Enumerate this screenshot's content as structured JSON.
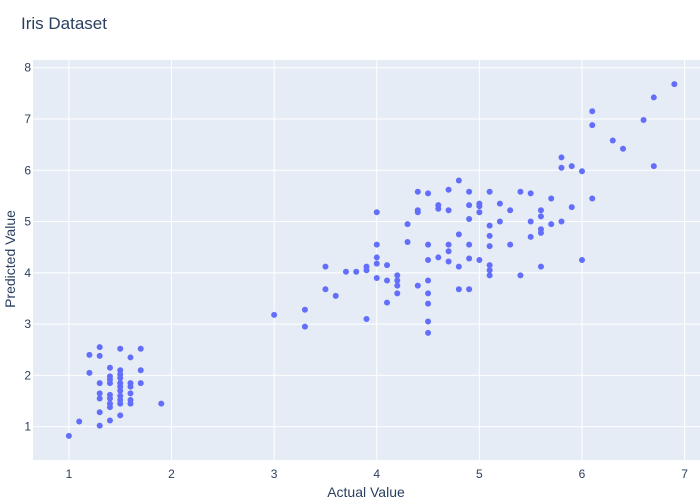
{
  "chart_data": {
    "type": "scatter",
    "title": "Iris Dataset",
    "xlabel": "Actual Value",
    "ylabel": "Predicted Value",
    "xlim": [
      0.65,
      7.15
    ],
    "ylim": [
      0.35,
      8.15
    ],
    "xticks": [
      1,
      2,
      3,
      4,
      5,
      6,
      7
    ],
    "yticks": [
      1,
      2,
      3,
      4,
      5,
      6,
      7,
      8
    ],
    "grid": true,
    "colors": {
      "plot_bg": "#e5ecf6",
      "grid": "#ffffff",
      "marker": "#636efa",
      "text": "#2a3f5f"
    },
    "series": [
      {
        "points": [
          [
            1.0,
            0.82
          ],
          [
            1.1,
            1.1
          ],
          [
            1.2,
            2.05
          ],
          [
            1.2,
            2.4
          ],
          [
            1.3,
            2.55
          ],
          [
            1.3,
            2.38
          ],
          [
            1.3,
            1.85
          ],
          [
            1.3,
            1.65
          ],
          [
            1.3,
            1.55
          ],
          [
            1.3,
            1.28
          ],
          [
            1.3,
            1.02
          ],
          [
            1.4,
            2.15
          ],
          [
            1.4,
            1.98
          ],
          [
            1.4,
            1.92
          ],
          [
            1.4,
            1.85
          ],
          [
            1.4,
            1.62
          ],
          [
            1.4,
            1.55
          ],
          [
            1.4,
            1.45
          ],
          [
            1.4,
            1.38
          ],
          [
            1.4,
            1.12
          ],
          [
            1.5,
            2.52
          ],
          [
            1.5,
            2.1
          ],
          [
            1.5,
            2.02
          ],
          [
            1.5,
            1.95
          ],
          [
            1.5,
            1.85
          ],
          [
            1.5,
            1.78
          ],
          [
            1.5,
            1.7
          ],
          [
            1.5,
            1.6
          ],
          [
            1.5,
            1.52
          ],
          [
            1.5,
            1.45
          ],
          [
            1.5,
            1.22
          ],
          [
            1.6,
            2.35
          ],
          [
            1.6,
            1.85
          ],
          [
            1.6,
            1.78
          ],
          [
            1.6,
            1.65
          ],
          [
            1.6,
            1.52
          ],
          [
            1.6,
            1.45
          ],
          [
            1.7,
            2.52
          ],
          [
            1.7,
            2.1
          ],
          [
            1.7,
            1.85
          ],
          [
            1.9,
            1.45
          ],
          [
            3.0,
            3.18
          ],
          [
            3.3,
            3.28
          ],
          [
            3.3,
            2.95
          ],
          [
            3.5,
            4.12
          ],
          [
            3.5,
            3.68
          ],
          [
            3.6,
            3.55
          ],
          [
            3.7,
            4.02
          ],
          [
            3.8,
            4.02
          ],
          [
            3.9,
            4.12
          ],
          [
            3.9,
            4.05
          ],
          [
            3.9,
            3.1
          ],
          [
            4.0,
            5.18
          ],
          [
            4.0,
            4.55
          ],
          [
            4.0,
            4.3
          ],
          [
            4.0,
            4.18
          ],
          [
            4.0,
            3.9
          ],
          [
            4.1,
            4.15
          ],
          [
            4.1,
            3.85
          ],
          [
            4.1,
            3.42
          ],
          [
            4.2,
            3.95
          ],
          [
            4.2,
            3.85
          ],
          [
            4.2,
            3.75
          ],
          [
            4.2,
            3.6
          ],
          [
            4.3,
            4.95
          ],
          [
            4.3,
            4.6
          ],
          [
            4.4,
            5.58
          ],
          [
            4.4,
            5.22
          ],
          [
            4.4,
            5.18
          ],
          [
            4.4,
            3.75
          ],
          [
            4.5,
            5.55
          ],
          [
            4.5,
            4.55
          ],
          [
            4.5,
            4.25
          ],
          [
            4.5,
            3.85
          ],
          [
            4.5,
            3.6
          ],
          [
            4.5,
            3.4
          ],
          [
            4.5,
            3.05
          ],
          [
            4.5,
            2.83
          ],
          [
            4.6,
            5.32
          ],
          [
            4.6,
            5.25
          ],
          [
            4.6,
            4.3
          ],
          [
            4.7,
            5.62
          ],
          [
            4.7,
            5.22
          ],
          [
            4.7,
            4.55
          ],
          [
            4.7,
            4.42
          ],
          [
            4.7,
            4.22
          ],
          [
            4.8,
            5.8
          ],
          [
            4.8,
            4.75
          ],
          [
            4.8,
            4.12
          ],
          [
            4.8,
            3.68
          ],
          [
            4.9,
            5.58
          ],
          [
            4.9,
            5.32
          ],
          [
            4.9,
            5.05
          ],
          [
            4.9,
            4.55
          ],
          [
            4.9,
            4.28
          ],
          [
            4.9,
            3.68
          ],
          [
            5.0,
            5.35
          ],
          [
            5.0,
            5.3
          ],
          [
            5.0,
            5.18
          ],
          [
            5.0,
            4.25
          ],
          [
            5.1,
            5.58
          ],
          [
            5.1,
            4.92
          ],
          [
            5.1,
            4.72
          ],
          [
            5.1,
            4.52
          ],
          [
            5.1,
            4.15
          ],
          [
            5.1,
            4.05
          ],
          [
            5.1,
            3.95
          ],
          [
            5.2,
            5.35
          ],
          [
            5.2,
            5.0
          ],
          [
            5.3,
            5.22
          ],
          [
            5.3,
            4.55
          ],
          [
            5.4,
            5.58
          ],
          [
            5.4,
            3.95
          ],
          [
            5.5,
            5.55
          ],
          [
            5.5,
            5.0
          ],
          [
            5.5,
            4.7
          ],
          [
            5.6,
            5.22
          ],
          [
            5.6,
            5.1
          ],
          [
            5.6,
            4.85
          ],
          [
            5.6,
            4.78
          ],
          [
            5.6,
            4.12
          ],
          [
            5.7,
            5.45
          ],
          [
            5.7,
            4.95
          ],
          [
            5.8,
            6.25
          ],
          [
            5.8,
            6.05
          ],
          [
            5.8,
            5.0
          ],
          [
            5.9,
            6.08
          ],
          [
            5.9,
            5.28
          ],
          [
            6.0,
            5.98
          ],
          [
            6.0,
            4.25
          ],
          [
            6.1,
            7.15
          ],
          [
            6.1,
            6.88
          ],
          [
            6.1,
            5.45
          ],
          [
            6.3,
            6.58
          ],
          [
            6.4,
            6.42
          ],
          [
            6.6,
            6.98
          ],
          [
            6.7,
            7.42
          ],
          [
            6.7,
            6.08
          ],
          [
            6.9,
            7.68
          ]
        ]
      }
    ]
  }
}
